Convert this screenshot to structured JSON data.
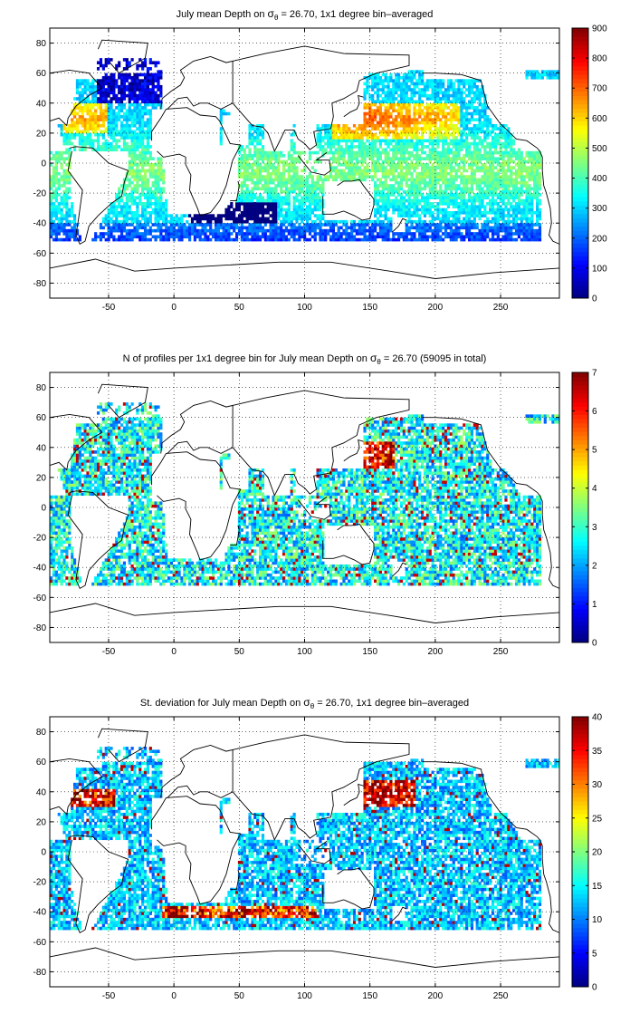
{
  "chart_data": [
    {
      "type": "heatmap",
      "title_main": "July mean Depth on",
      "title_sigma": "σ",
      "title_sub": "θ",
      "title_rest": " = 26.70, 1x1 degree bin–averaged",
      "x_ticks": [
        -50,
        0,
        50,
        100,
        150,
        200,
        250
      ],
      "y_ticks": [
        -80,
        -60,
        -40,
        -20,
        0,
        20,
        40,
        60,
        80
      ],
      "xlim": [
        -95,
        295
      ],
      "ylim": [
        -90,
        90
      ],
      "colorbar_ticks": [
        0,
        100,
        200,
        300,
        400,
        500,
        600,
        700,
        800,
        900
      ],
      "clim": [
        0,
        900
      ],
      "colormap": "jet",
      "grid": true
    },
    {
      "type": "heatmap",
      "title_main": "N of profiles per 1x1 degree bin for July mean Depth on",
      "title_sigma": "σ",
      "title_sub": "θ",
      "title_rest": " = 26.70 (59095 in total)",
      "x_ticks": [
        -50,
        0,
        50,
        100,
        150,
        200,
        250
      ],
      "y_ticks": [
        -80,
        -60,
        -40,
        -20,
        0,
        20,
        40,
        60,
        80
      ],
      "xlim": [
        -95,
        295
      ],
      "ylim": [
        -90,
        90
      ],
      "colorbar_ticks": [
        0,
        1,
        2,
        3,
        4,
        5,
        6,
        7
      ],
      "clim": [
        0,
        7
      ],
      "colormap": "jet",
      "grid": true
    },
    {
      "type": "heatmap",
      "title_main": "St. deviation for July mean Depth on",
      "title_sigma": "σ",
      "title_sub": "θ",
      "title_rest": " = 26.70, 1x1 degree bin–averaged",
      "x_ticks": [
        -50,
        0,
        50,
        100,
        150,
        200,
        250
      ],
      "y_ticks": [
        -80,
        -60,
        -40,
        -20,
        0,
        20,
        40,
        60,
        80
      ],
      "xlim": [
        -95,
        295
      ],
      "ylim": [
        -90,
        90
      ],
      "colorbar_ticks": [
        0,
        5,
        10,
        15,
        20,
        25,
        30,
        35,
        40
      ],
      "clim": [
        0,
        40
      ],
      "colormap": "jet",
      "grid": true
    }
  ]
}
